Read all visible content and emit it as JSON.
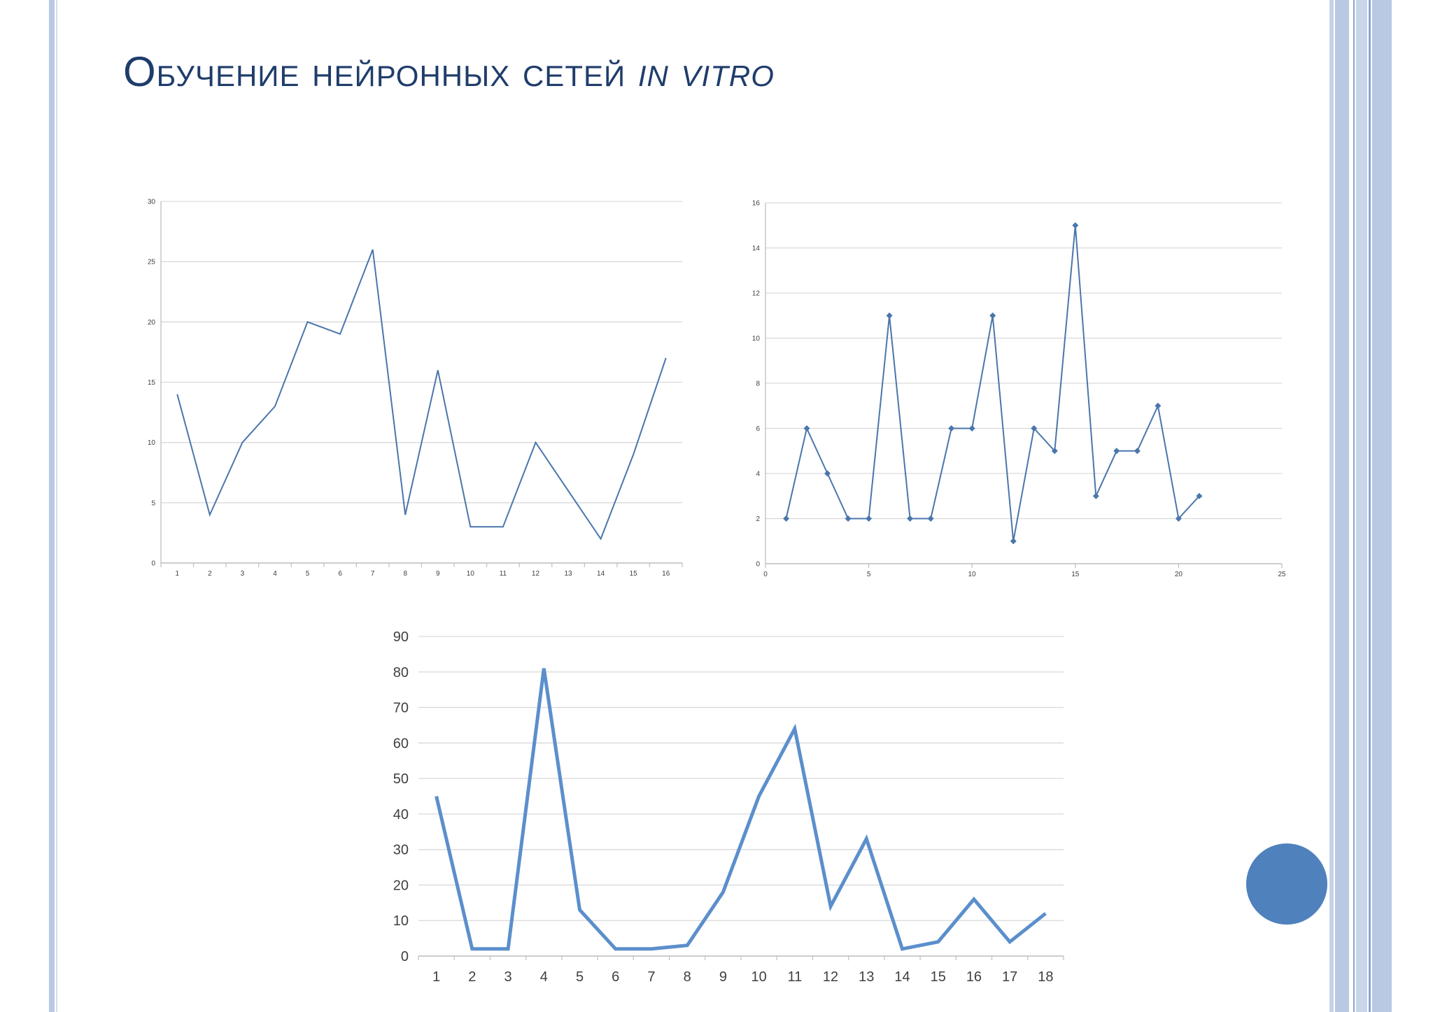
{
  "slide": {
    "title_main": "Обучение нейронных сетей ",
    "title_italic": "in vitro"
  },
  "colors": {
    "title": "#1f3d6b",
    "line_thin": "#4a76ab",
    "line_thick": "#5b8fcc",
    "decor_circle": "#4f81bd",
    "side_bar_light": "#b9c8e3",
    "side_bar_dark": "#8aa3cf",
    "gridline": "#d9d9d9"
  },
  "chart_data": [
    {
      "type": "line",
      "x": [
        1,
        2,
        3,
        4,
        5,
        6,
        7,
        8,
        9,
        10,
        11,
        12,
        13,
        14,
        15,
        16
      ],
      "series": [
        {
          "values": [
            14,
            4,
            10,
            13,
            20,
            19,
            26,
            4,
            16,
            3,
            3,
            10,
            6,
            2,
            9,
            17
          ]
        }
      ],
      "ylim": [
        0,
        30
      ],
      "yticks": [
        0,
        5,
        10,
        15,
        20,
        25,
        30
      ],
      "x_axis": "category",
      "markers": false,
      "grid": true,
      "legend": "none"
    },
    {
      "type": "scatter",
      "x": [
        1,
        2,
        3,
        4,
        5,
        6,
        7,
        8,
        9,
        10,
        11,
        12,
        13,
        14,
        15,
        16,
        17,
        18,
        19,
        20,
        21
      ],
      "series": [
        {
          "values": [
            2,
            6,
            4,
            2,
            2,
            11,
            2,
            2,
            6,
            6,
            11,
            1,
            6,
            5,
            15,
            3,
            5,
            5,
            7,
            2,
            3
          ]
        }
      ],
      "xlim": [
        0,
        25
      ],
      "xticks": [
        0,
        5,
        10,
        15,
        20,
        25
      ],
      "ylim": [
        0,
        16
      ],
      "yticks": [
        0,
        2,
        4,
        6,
        8,
        10,
        12,
        14,
        16
      ],
      "x_axis": "value",
      "markers": true,
      "connected": true,
      "grid": true,
      "legend": "none"
    },
    {
      "type": "line",
      "x": [
        1,
        2,
        3,
        4,
        5,
        6,
        7,
        8,
        9,
        10,
        11,
        12,
        13,
        14,
        15,
        16,
        17,
        18
      ],
      "series": [
        {
          "values": [
            45,
            2,
            2,
            81,
            13,
            2,
            2,
            3,
            18,
            45,
            64,
            14,
            33,
            2,
            4,
            16,
            4,
            12
          ]
        }
      ],
      "ylim": [
        0,
        90
      ],
      "yticks": [
        0,
        10,
        20,
        30,
        40,
        50,
        60,
        70,
        80,
        90
      ],
      "x_axis": "category",
      "markers": false,
      "grid": true,
      "legend": "none"
    }
  ]
}
